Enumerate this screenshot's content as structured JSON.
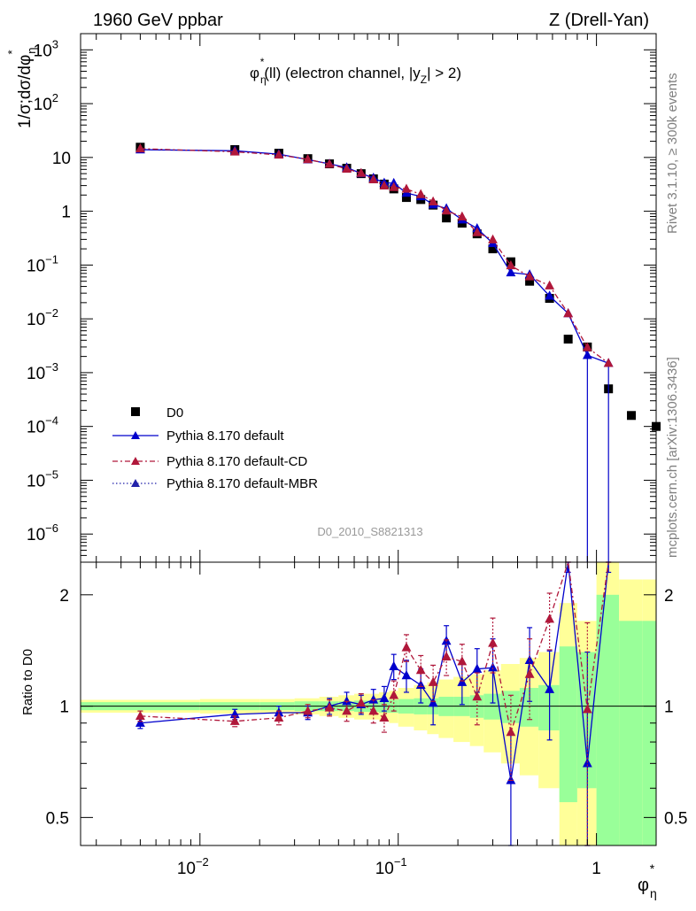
{
  "header": {
    "left": "1960 GeV ppbar",
    "right": "Z (Drell-Yan)"
  },
  "side_labels": {
    "rivet": "Rivet 3.1.10, ≥ 300k events",
    "mcplots": "mcplots.cern.ch [arXiv:1306.3436]"
  },
  "watermark": "D0_2010_S8821313",
  "plot_title": {
    "phi": "φ",
    "sub_eta": "η",
    "sup_star": "*",
    "rest_a": "(ll) (electron channel, |y",
    "sub_z": "Z",
    "rest_b": "| > 2)"
  },
  "axis": {
    "ylabel_main": "1/σ;dσ/dφ",
    "ylabel_main_sub": "η",
    "ylabel_main_sup": "*",
    "ylabel_ratio": "Ratio to D0",
    "xlabel": "φ",
    "xlabel_sub": "η",
    "xlabel_sup": "*"
  },
  "legend": [
    {
      "label": "D0",
      "color": "#000000",
      "marker": "square",
      "line": "none"
    },
    {
      "label": "Pythia 8.170 default",
      "color": "#0000cc",
      "marker": "triangle",
      "line": "solid"
    },
    {
      "label": "Pythia 8.170 default-CD",
      "color": "#b0173a",
      "marker": "triangle",
      "line": "dashdot"
    },
    {
      "label": "Pythia 8.170 default-MBR",
      "color": "#2222aa",
      "marker": "triangle",
      "line": "dotted"
    }
  ],
  "chart_data": {
    "type": "scatter",
    "x_scale": "log",
    "y_scale": "log",
    "xlim": [
      0.0025,
      2.0
    ],
    "ylim": [
      3e-07,
      2000
    ],
    "ratio_ylim": [
      0.42,
      2.45
    ],
    "x_ticks": [
      {
        "value": 0.01,
        "base": "10",
        "exp": "−2"
      },
      {
        "value": 0.1,
        "base": "10",
        "exp": "−1"
      },
      {
        "value": 1,
        "base": "1",
        "exp": ""
      }
    ],
    "y_ticks": [
      {
        "value": 1000,
        "base": "10",
        "exp": "3"
      },
      {
        "value": 100,
        "base": "10",
        "exp": "2"
      },
      {
        "value": 10,
        "base": "10",
        "exp": ""
      },
      {
        "value": 1,
        "base": "1",
        "exp": ""
      },
      {
        "value": 0.1,
        "base": "10",
        "exp": "−1"
      },
      {
        "value": 0.01,
        "base": "10",
        "exp": "−2"
      },
      {
        "value": 0.001,
        "base": "10",
        "exp": "−3"
      },
      {
        "value": 0.0001,
        "base": "10",
        "exp": "−4"
      },
      {
        "value": 1e-05,
        "base": "10",
        "exp": "−5"
      },
      {
        "value": 1e-06,
        "base": "10",
        "exp": "−6"
      }
    ],
    "ratio_ticks": [
      {
        "value": 0.5,
        "label": "0.5"
      },
      {
        "value": 1,
        "label": "1"
      },
      {
        "value": 2,
        "label": "2"
      }
    ],
    "x": [
      0.005,
      0.015,
      0.025,
      0.035,
      0.045,
      0.055,
      0.065,
      0.075,
      0.085,
      0.095,
      0.11,
      0.13,
      0.15,
      0.175,
      0.21,
      0.25,
      0.3,
      0.37,
      0.46,
      0.58,
      0.72,
      0.9,
      1.15,
      1.5,
      2.0
    ],
    "data": {
      "name": "D0",
      "y": [
        15.5,
        14.0,
        12.0,
        9.5,
        7.6,
        6.3,
        5.0,
        4.0,
        3.2,
        2.6,
        1.8,
        1.65,
        1.3,
        0.75,
        0.6,
        0.38,
        0.2,
        0.115,
        0.05,
        0.024,
        0.0042,
        0.003,
        0.0005,
        0.00016,
        0.0001
      ]
    },
    "bands": {
      "x_edges": [
        0.0,
        0.01,
        0.02,
        0.03,
        0.04,
        0.05,
        0.06,
        0.07,
        0.08,
        0.09,
        0.1,
        0.12,
        0.14,
        0.16,
        0.19,
        0.23,
        0.27,
        0.33,
        0.41,
        0.51,
        0.65,
        0.8,
        1.0,
        1.3,
        1.7,
        2.3
      ],
      "inner": [
        0.025,
        0.025,
        0.025,
        0.03,
        0.03,
        0.03,
        0.035,
        0.035,
        0.04,
        0.04,
        0.045,
        0.05,
        0.05,
        0.06,
        0.06,
        0.07,
        0.08,
        0.1,
        0.12,
        0.14,
        0.45,
        0.4,
        1.0,
        0.7,
        0.7
      ],
      "outer": [
        0.04,
        0.045,
        0.045,
        0.05,
        0.06,
        0.07,
        0.08,
        0.08,
        0.09,
        0.1,
        0.12,
        0.14,
        0.16,
        0.18,
        0.2,
        0.22,
        0.25,
        0.3,
        0.35,
        0.4,
        0.9,
        0.7,
        1.5,
        1.2,
        1.2
      ]
    },
    "series": [
      {
        "name": "Pythia 8.170 default",
        "ratio": [
          0.9,
          0.95,
          0.96,
          0.96,
          1.0,
          1.03,
          1.01,
          1.04,
          1.05,
          1.28,
          1.21,
          1.14,
          1.02,
          1.5,
          1.16,
          1.26,
          1.27,
          0.63,
          1.33,
          1.11,
          3.0,
          0.7,
          3.0
        ],
        "ratio_err": [
          0.03,
          0.03,
          0.04,
          0.04,
          0.05,
          0.06,
          0.06,
          0.07,
          0.08,
          0.1,
          0.12,
          0.12,
          0.13,
          0.15,
          0.15,
          0.17,
          0.25,
          0.22,
          0.3,
          0.3,
          0.7,
          0.7,
          0.7
        ]
      },
      {
        "name": "Pythia 8.170 default-CD",
        "ratio": [
          0.94,
          0.91,
          0.93,
          0.97,
          0.99,
          0.97,
          1.02,
          0.97,
          0.93,
          1.07,
          1.44,
          1.25,
          1.16,
          1.36,
          1.32,
          1.06,
          1.48,
          0.85,
          1.22,
          1.72,
          3.5,
          0.98,
          3.5
        ],
        "ratio_err": [
          0.03,
          0.03,
          0.04,
          0.04,
          0.05,
          0.06,
          0.06,
          0.07,
          0.08,
          0.1,
          0.12,
          0.12,
          0.13,
          0.15,
          0.15,
          0.17,
          0.25,
          0.22,
          0.3,
          0.3,
          0.7,
          0.7,
          0.7
        ]
      },
      {
        "name": "Pythia 8.170 default-MBR"
      }
    ]
  }
}
